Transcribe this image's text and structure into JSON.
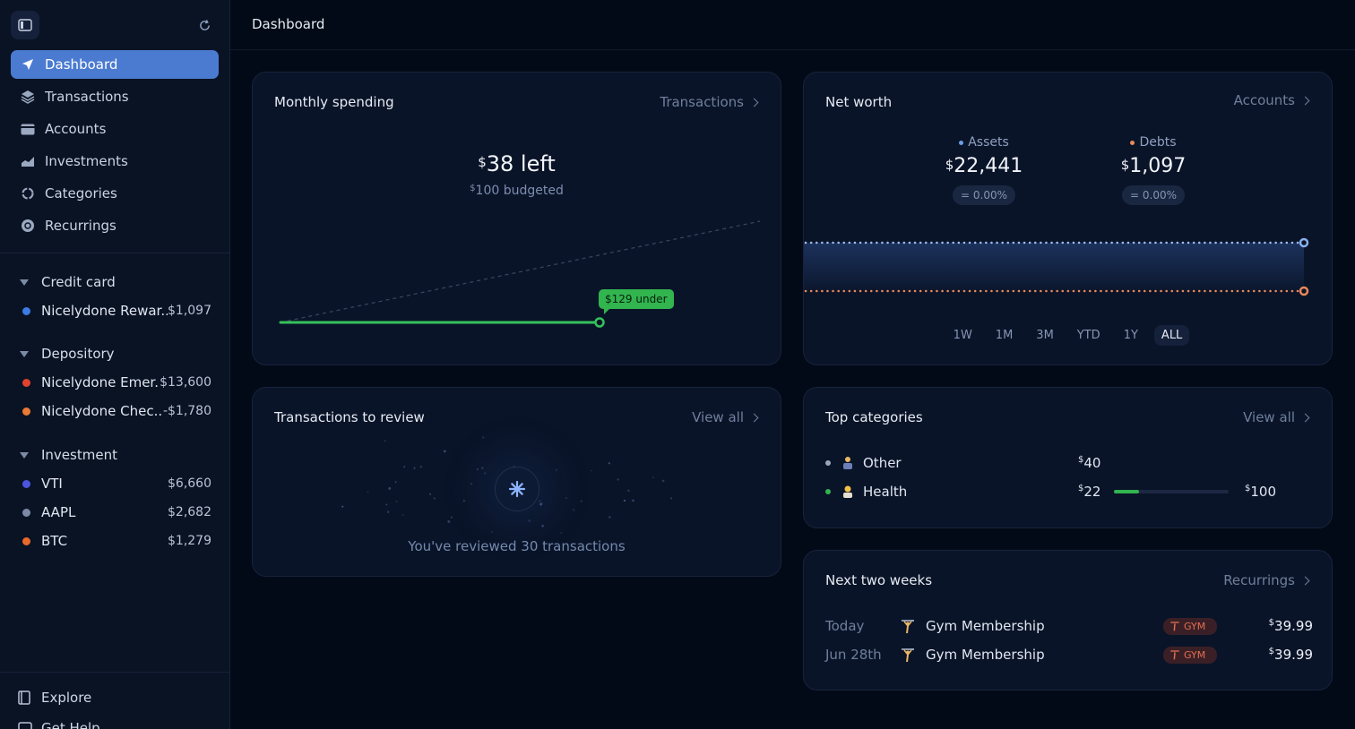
{
  "header": {
    "title": "Dashboard"
  },
  "sidebar": {
    "nav": [
      {
        "label": "Dashboard",
        "icon": "send-icon",
        "active": true
      },
      {
        "label": "Transactions",
        "icon": "layers-icon"
      },
      {
        "label": "Accounts",
        "icon": "card-icon"
      },
      {
        "label": "Investments",
        "icon": "chart-icon"
      },
      {
        "label": "Categories",
        "icon": "category-icon"
      },
      {
        "label": "Recurrings",
        "icon": "recurring-icon"
      }
    ],
    "groups": [
      {
        "name": "Credit card",
        "accounts": [
          {
            "name": "Nicelydone Rewar...",
            "value": "$1,097",
            "color": "#3d7be6"
          }
        ]
      },
      {
        "name": "Depository",
        "accounts": [
          {
            "name": "Nicelydone Emer...",
            "value": "$13,600",
            "color": "#e0432f"
          },
          {
            "name": "Nicelydone Chec...",
            "value": "-$1,780",
            "color": "#ea7a35"
          }
        ]
      },
      {
        "name": "Investment",
        "accounts": [
          {
            "name": "VTI",
            "value": "$6,660",
            "color": "#4a56e0"
          },
          {
            "name": "AAPL",
            "value": "$2,682",
            "color": "#7c8aa5"
          },
          {
            "name": "BTC",
            "value": "$1,279",
            "color": "#ea6a2a"
          }
        ]
      }
    ],
    "bottom": [
      {
        "label": "Explore",
        "icon": "book-icon"
      },
      {
        "label": "Get Help",
        "icon": "chat-icon"
      }
    ]
  },
  "monthly": {
    "title": "Monthly spending",
    "link": "Transactions",
    "left_currency": "$",
    "left_amount": "38 left",
    "budget_currency": "$",
    "budget_amount": "100 budgeted",
    "badge": "$129 under"
  },
  "networth": {
    "title": "Net worth",
    "link": "Accounts",
    "assets": {
      "label": "Assets",
      "currency": "$",
      "value": "22,441",
      "change": "= 0.00%",
      "color": "#6e9be8"
    },
    "debts": {
      "label": "Debts",
      "currency": "$",
      "value": "1,097",
      "change": "= 0.00%",
      "color": "#ea8a5a"
    },
    "ranges": [
      "1W",
      "1M",
      "3M",
      "YTD",
      "1Y",
      "ALL"
    ],
    "selected_range": "ALL"
  },
  "review": {
    "title": "Transactions to review",
    "link": "View all",
    "message": "You've reviewed 30 transactions"
  },
  "categories": {
    "title": "Top categories",
    "link": "View all",
    "items": [
      {
        "name": "Other",
        "currency": "$",
        "amount": "40",
        "color": "#9aa6bb"
      },
      {
        "name": "Health",
        "currency": "$",
        "amount": "22",
        "budget_currency": "$",
        "budget": "100",
        "progress": 0.22,
        "color": "#32b44f"
      }
    ]
  },
  "next_two_weeks": {
    "title": "Next two weeks",
    "link": "Recurrings",
    "items": [
      {
        "date": "Today",
        "name": "Gym Membership",
        "tag": "GYM",
        "currency": "$",
        "amount": "39.99"
      },
      {
        "date": "Jun 28th",
        "name": "Gym Membership",
        "tag": "GYM",
        "currency": "$",
        "amount": "39.99"
      }
    ]
  }
}
